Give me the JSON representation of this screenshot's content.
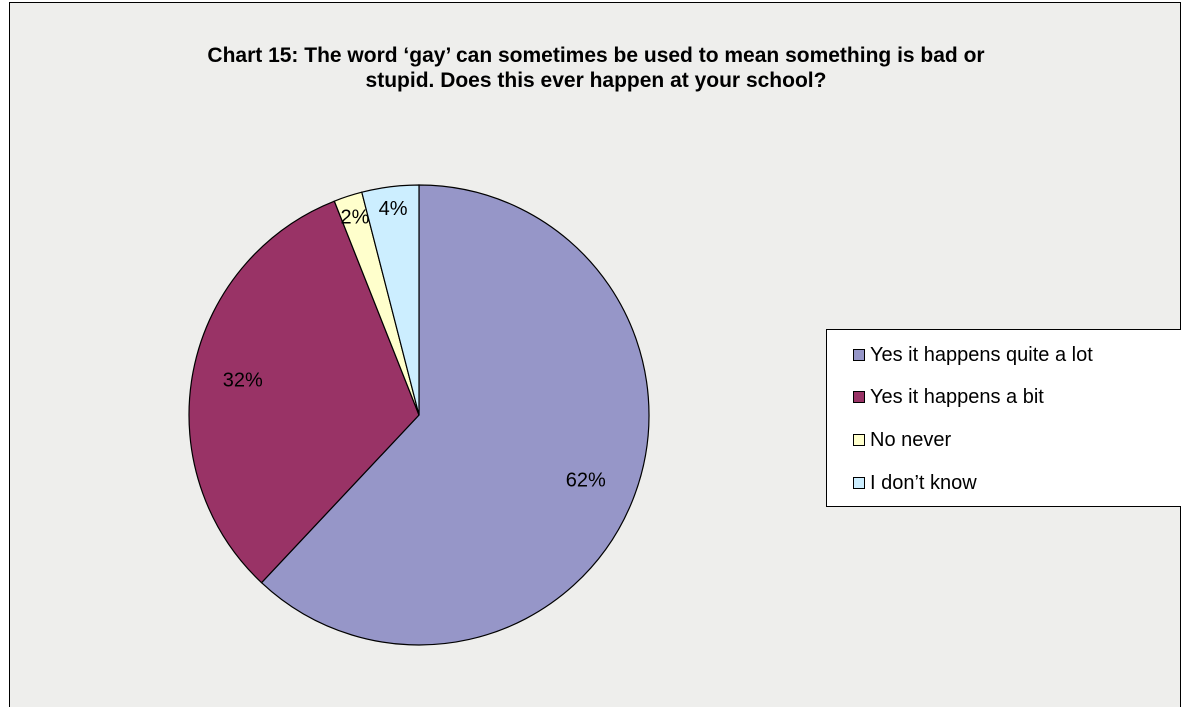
{
  "chart_data": {
    "type": "pie",
    "title": "Chart 15: The word ‘gay’ can sometimes be used to mean something is bad or stupid. Does this ever happen at your school?",
    "title_lines": [
      "Chart 15: The word ‘gay’ can sometimes be used to mean something is bad or",
      "stupid. Does this ever happen at your school?"
    ],
    "categories": [
      "Yes it happens quite a lot",
      "Yes it happens a bit",
      "No never",
      "I don’t know"
    ],
    "values": [
      62,
      32,
      2,
      4
    ],
    "value_labels": [
      "62%",
      "32%",
      "2%",
      "4%"
    ],
    "colors": [
      "#9696c8",
      "#993366",
      "#ffffcc",
      "#cceeff"
    ],
    "start_angle": "12 o'clock",
    "direction": "clockwise",
    "legend_position": "right"
  }
}
